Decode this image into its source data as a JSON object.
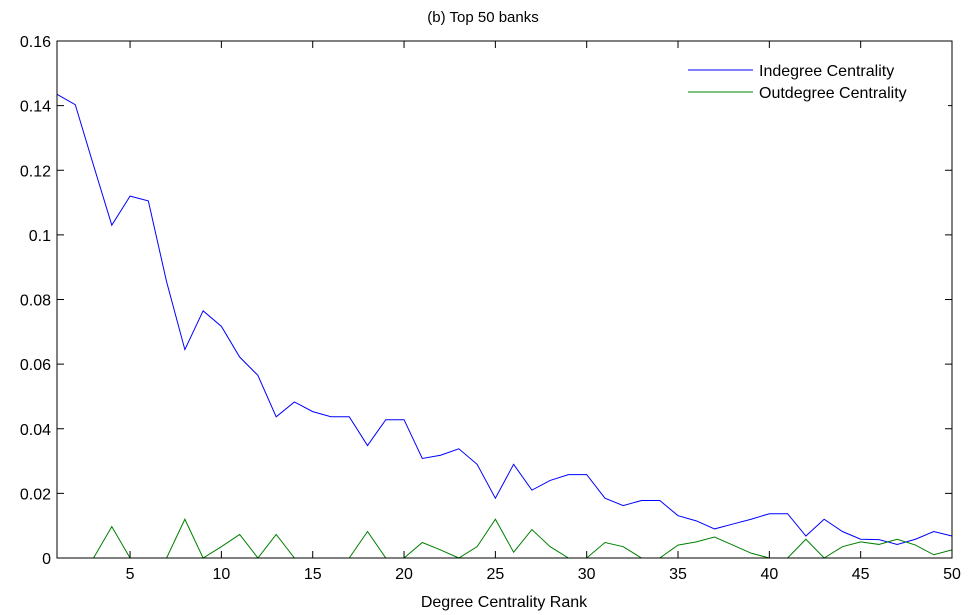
{
  "chart_data": {
    "type": "line",
    "title": "(b) Top 50 banks",
    "xlabel": "Degree Centrality Rank",
    "ylabel": "",
    "xlim": [
      1,
      50
    ],
    "ylim": [
      0,
      0.16
    ],
    "xticks": [
      5,
      10,
      15,
      20,
      25,
      30,
      35,
      40,
      45,
      50
    ],
    "yticks": [
      0,
      0.02,
      0.04,
      0.06,
      0.08,
      0.1,
      0.12,
      0.14,
      0.16
    ],
    "xtick_labels": [
      "5",
      "10",
      "15",
      "20",
      "25",
      "30",
      "35",
      "40",
      "45",
      "50"
    ],
    "ytick_labels": [
      "0",
      "0.02",
      "0.04",
      "0.06",
      "0.08",
      "0.1",
      "0.12",
      "0.14",
      "0.16"
    ],
    "grid": false,
    "legend_position": "top-right",
    "x": [
      1,
      2,
      3,
      4,
      5,
      6,
      7,
      8,
      9,
      10,
      11,
      12,
      13,
      14,
      15,
      16,
      17,
      18,
      19,
      20,
      21,
      22,
      23,
      24,
      25,
      26,
      27,
      28,
      29,
      30,
      31,
      32,
      33,
      34,
      35,
      36,
      37,
      38,
      39,
      40,
      41,
      42,
      43,
      44,
      45,
      46,
      47,
      48,
      49,
      50
    ],
    "series": [
      {
        "name": "Indegree Centrality",
        "color": "#0000ff",
        "values": [
          0.1435,
          0.1403,
          0.1215,
          0.103,
          0.112,
          0.1105,
          0.0855,
          0.0645,
          0.0765,
          0.0717,
          0.0622,
          0.0565,
          0.0437,
          0.0483,
          0.0453,
          0.0437,
          0.0437,
          0.0348,
          0.0428,
          0.0428,
          0.0308,
          0.0318,
          0.0338,
          0.029,
          0.0185,
          0.029,
          0.021,
          0.024,
          0.0258,
          0.0258,
          0.0185,
          0.0162,
          0.0178,
          0.0178,
          0.0131,
          0.0115,
          0.009,
          0.0105,
          0.012,
          0.0137,
          0.0137,
          0.0068,
          0.012,
          0.0082,
          0.0058,
          0.0057,
          0.0042,
          0.0058,
          0.0082,
          0.0068
        ]
      },
      {
        "name": "Outdegree Centrality",
        "color": "#008000",
        "values": [
          0,
          0,
          0,
          0.0097,
          0,
          0,
          0,
          0.012,
          0,
          0.0035,
          0.0073,
          0,
          0.0073,
          0,
          0,
          0,
          0,
          0.0082,
          0,
          0,
          0.0048,
          0.0025,
          0,
          0.0035,
          0.012,
          0.0018,
          0.0088,
          0.0035,
          0,
          0,
          0.0048,
          0.0035,
          0,
          0,
          0.004,
          0.005,
          0.0065,
          0.004,
          0.0015,
          0,
          0,
          0.0058,
          0,
          0.0035,
          0.005,
          0.0042,
          0.0058,
          0.004,
          0.001,
          0.0025
        ]
      }
    ]
  }
}
